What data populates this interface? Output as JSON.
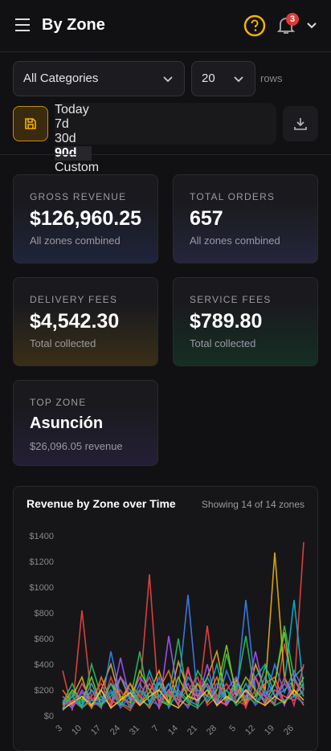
{
  "header": {
    "title": "By Zone",
    "notifications": "3"
  },
  "controls": {
    "category": "All Categories",
    "rows": "20",
    "rows_label": "rows",
    "ranges": [
      "Today",
      "7d",
      "30d",
      "90d",
      "Custom"
    ],
    "selected": "90d"
  },
  "cards": [
    {
      "label": "GROSS REVENUE",
      "value": "$126,960.25",
      "sub": "All zones combined",
      "color": "#3b4a8a"
    },
    {
      "label": "TOTAL ORDERS",
      "value": "657",
      "sub": "All zones combined",
      "color": "#4a4f8a"
    },
    {
      "label": "DELIVERY FEES",
      "value": "$4,542.30",
      "sub": "Total collected",
      "color": "#8a6a20"
    },
    {
      "label": "SERVICE FEES",
      "value": "$789.80",
      "sub": "Total collected",
      "color": "#1f6a45"
    },
    {
      "label": "TOP ZONE",
      "value": "Asunción",
      "sub": "$26,096.05 revenue",
      "color": "#4a3a7a"
    }
  ],
  "chart_data": {
    "type": "line",
    "title": "Revenue by Zone over Time",
    "subtitle": "Showing 14 of 14 zones",
    "categories": [
      "3",
      null,
      "10",
      null,
      "17",
      null,
      "24",
      null,
      "31",
      null,
      "7",
      null,
      "14",
      null,
      "21",
      null,
      "28",
      null,
      "5",
      null,
      "12",
      null,
      "19",
      null,
      "26",
      null
    ],
    "ylim": [
      0,
      1400
    ],
    "yticks": [
      {
        "value": 0,
        "label": "$0"
      },
      {
        "value": 200,
        "label": "$200"
      },
      {
        "value": 400,
        "label": "$400"
      },
      {
        "value": 600,
        "label": "$600"
      },
      {
        "value": 800,
        "label": "$800"
      },
      {
        "value": 1000,
        "label": "$1000"
      },
      {
        "value": 1200,
        "label": "$1200"
      },
      {
        "value": 1400,
        "label": "$1400"
      }
    ],
    "series": [
      {
        "color": "#ef4444",
        "values": [
          350,
          40,
          820,
          120,
          60,
          300,
          90,
          40,
          180,
          1100,
          60,
          200,
          90,
          380,
          50,
          700,
          120,
          90,
          240,
          60,
          300,
          150,
          80,
          560,
          200,
          1350
        ]
      },
      {
        "color": "#22c55e",
        "values": [
          100,
          250,
          60,
          400,
          150,
          80,
          300,
          120,
          500,
          90,
          260,
          150,
          600,
          110,
          350,
          220,
          90,
          480,
          200,
          620,
          150,
          380,
          250,
          700,
          300,
          380
        ]
      },
      {
        "color": "#eab308",
        "values": [
          80,
          150,
          300,
          60,
          200,
          400,
          120,
          250,
          90,
          180,
          350,
          100,
          420,
          200,
          150,
          300,
          500,
          120,
          280,
          90,
          400,
          200,
          1270,
          300,
          150,
          250
        ]
      },
      {
        "color": "#3b82f6",
        "values": [
          40,
          120,
          80,
          200,
          60,
          500,
          150,
          80,
          250,
          100,
          300,
          60,
          200,
          940,
          120,
          250,
          80,
          350,
          150,
          900,
          200,
          120,
          400,
          180,
          350,
          200
        ]
      },
      {
        "color": "#a855f7",
        "values": [
          120,
          60,
          200,
          90,
          150,
          80,
          450,
          120,
          300,
          200,
          60,
          620,
          150,
          250,
          100,
          400,
          80,
          200,
          300,
          120,
          500,
          150,
          250,
          80,
          300,
          150
        ]
      },
      {
        "color": "#06b6d4",
        "values": [
          60,
          180,
          100,
          250,
          80,
          150,
          300,
          200,
          100,
          350,
          150,
          250,
          80,
          300,
          200,
          150,
          400,
          100,
          250,
          180,
          300,
          400,
          150,
          250,
          900,
          200
        ]
      },
      {
        "color": "#f97316",
        "values": [
          200,
          90,
          150,
          60,
          300,
          120,
          80,
          250,
          150,
          60,
          200,
          350,
          120,
          80,
          250,
          150,
          300,
          80,
          200,
          120,
          150,
          250,
          300,
          100,
          200,
          80
        ]
      },
      {
        "color": "#84cc16",
        "values": [
          90,
          200,
          120,
          300,
          80,
          250,
          150,
          100,
          350,
          200,
          120,
          80,
          300,
          150,
          250,
          100,
          200,
          550,
          150,
          300,
          200,
          100,
          250,
          650,
          150,
          300
        ]
      },
      {
        "color": "#ec4899",
        "values": [
          150,
          80,
          250,
          120,
          200,
          60,
          300,
          150,
          80,
          250,
          120,
          200,
          80,
          350,
          150,
          250,
          120,
          80,
          200,
          150,
          300,
          80,
          200,
          150,
          120,
          200
        ]
      },
      {
        "color": "#14b8a6",
        "values": [
          60,
          150,
          80,
          200,
          120,
          250,
          80,
          180,
          120,
          80,
          250,
          150,
          200,
          120,
          80,
          300,
          150,
          200,
          100,
          250,
          120,
          300,
          150,
          200,
          280,
          150
        ]
      },
      {
        "color": "#f43f5e",
        "values": [
          80,
          120,
          60,
          150,
          250,
          90,
          200,
          60,
          150,
          300,
          100,
          180,
          120,
          200,
          300,
          80,
          150,
          250,
          120,
          80,
          200,
          150,
          100,
          300,
          80,
          400
        ]
      },
      {
        "color": "#6366f1",
        "values": [
          120,
          60,
          180,
          80,
          100,
          200,
          60,
          150,
          200,
          120,
          80,
          250,
          150,
          60,
          200,
          120,
          250,
          100,
          150,
          200,
          80,
          180,
          120,
          250,
          150,
          100
        ]
      },
      {
        "color": "#facc15",
        "values": [
          50,
          100,
          150,
          80,
          200,
          60,
          120,
          180,
          80,
          150,
          200,
          100,
          60,
          150,
          120,
          200,
          80,
          150,
          100,
          200,
          120,
          80,
          150,
          100,
          200,
          120
        ]
      },
      {
        "color": "#10b981",
        "values": [
          100,
          150,
          60,
          120,
          80,
          180,
          100,
          60,
          200,
          120,
          150,
          80,
          180,
          100,
          60,
          150,
          120,
          200,
          80,
          150,
          100,
          200,
          80,
          120,
          150,
          180
        ]
      }
    ]
  }
}
